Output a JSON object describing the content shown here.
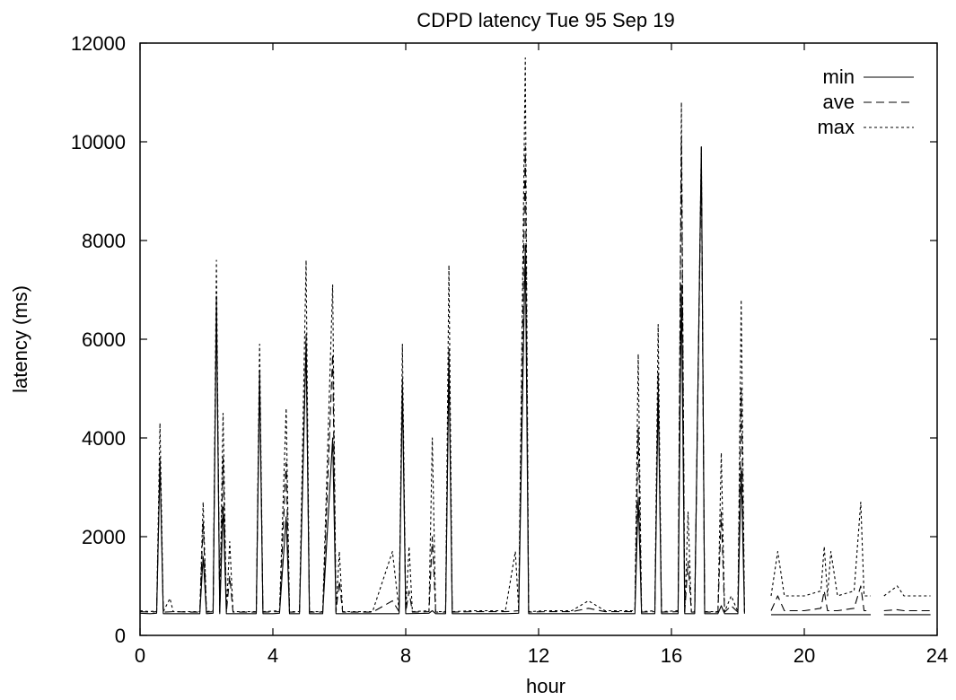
{
  "chart_data": {
    "type": "line",
    "title": "CDPD latency Tue 95 Sep 19",
    "xlabel": "hour",
    "ylabel": "latency (ms)",
    "xlim": [
      0,
      24
    ],
    "ylim": [
      0,
      12000
    ],
    "xticks": [
      0,
      4,
      8,
      12,
      16,
      20,
      24
    ],
    "yticks": [
      0,
      2000,
      4000,
      6000,
      8000,
      10000,
      12000
    ],
    "xtick_labels": [
      "0",
      "4",
      "8",
      "12",
      "16",
      "20",
      "24"
    ],
    "ytick_labels": [
      "0",
      "2000",
      "4000",
      "6000",
      "8000",
      "10000",
      "12000"
    ],
    "grid": false,
    "legend_position": "top-right",
    "series": [
      {
        "name": "min",
        "dash": "solid",
        "segments": [
          [
            [
              0,
              450
            ],
            [
              0.3,
              440
            ],
            [
              0.5,
              450
            ],
            [
              0.6,
              3500
            ],
            [
              0.7,
              440
            ],
            [
              1.0,
              440
            ],
            [
              1.5,
              440
            ],
            [
              1.8,
              440
            ],
            [
              1.9,
              1600
            ],
            [
              2.0,
              440
            ],
            [
              2.2,
              450
            ],
            [
              2.3,
              6700
            ],
            [
              2.4,
              440
            ],
            [
              2.5,
              2600
            ],
            [
              2.6,
              440
            ],
            [
              3.0,
              440
            ],
            [
              3.5,
              440
            ],
            [
              3.6,
              5200
            ],
            [
              3.7,
              440
            ],
            [
              4.0,
              440
            ],
            [
              4.2,
              450
            ],
            [
              4.4,
              2400
            ],
            [
              4.5,
              440
            ],
            [
              4.8,
              440
            ],
            [
              5.0,
              5900
            ],
            [
              5.1,
              440
            ],
            [
              5.5,
              440
            ],
            [
              5.8,
              4000
            ],
            [
              5.9,
              440
            ],
            [
              6.2,
              440
            ],
            [
              7.0,
              440
            ],
            [
              7.8,
              440
            ],
            [
              7.9,
              5000
            ],
            [
              8.0,
              440
            ],
            [
              8.7,
              450
            ],
            [
              8.8,
              500
            ],
            [
              8.9,
              440
            ],
            [
              9.2,
              440
            ],
            [
              9.3,
              5500
            ],
            [
              9.4,
              440
            ],
            [
              10.0,
              440
            ],
            [
              11.0,
              440
            ],
            [
              11.4,
              450
            ],
            [
              11.6,
              7900
            ],
            [
              11.7,
              440
            ],
            [
              12.2,
              440
            ],
            [
              13.0,
              440
            ],
            [
              14.0,
              440
            ],
            [
              14.9,
              440
            ],
            [
              15.0,
              2800
            ],
            [
              15.1,
              440
            ],
            [
              15.5,
              440
            ],
            [
              15.6,
              4900
            ],
            [
              15.7,
              440
            ],
            [
              16.2,
              440
            ],
            [
              16.3,
              7100
            ],
            [
              16.4,
              440
            ],
            [
              16.7,
              440
            ],
            [
              16.9,
              9900
            ],
            [
              17.0,
              440
            ],
            [
              17.4,
              440
            ],
            [
              17.5,
              600
            ],
            [
              17.6,
              440
            ],
            [
              18.0,
              440
            ],
            [
              18.1,
              3400
            ],
            [
              18.2,
              440
            ]
          ],
          [
            [
              19.0,
              420
            ],
            [
              20.0,
              420
            ],
            [
              21.0,
              420
            ],
            [
              22.0,
              420
            ]
          ],
          [
            [
              22.4,
              420
            ],
            [
              23.0,
              420
            ],
            [
              23.8,
              420
            ]
          ]
        ]
      },
      {
        "name": "ave",
        "dash": "dashed",
        "segments": [
          [
            [
              0,
              480
            ],
            [
              0.3,
              470
            ],
            [
              0.5,
              480
            ],
            [
              0.6,
              3600
            ],
            [
              0.7,
              470
            ],
            [
              1.0,
              480
            ],
            [
              1.5,
              470
            ],
            [
              1.8,
              470
            ],
            [
              1.9,
              2300
            ],
            [
              2.0,
              470
            ],
            [
              2.2,
              480
            ],
            [
              2.3,
              6900
            ],
            [
              2.4,
              470
            ],
            [
              2.5,
              3600
            ],
            [
              2.6,
              470
            ],
            [
              2.7,
              1200
            ],
            [
              2.8,
              470
            ],
            [
              3.5,
              470
            ],
            [
              3.6,
              5400
            ],
            [
              3.7,
              470
            ],
            [
              4.2,
              480
            ],
            [
              4.4,
              3500
            ],
            [
              4.5,
              470
            ],
            [
              4.8,
              470
            ],
            [
              5.0,
              6100
            ],
            [
              5.1,
              470
            ],
            [
              5.5,
              470
            ],
            [
              5.8,
              5700
            ],
            [
              5.9,
              470
            ],
            [
              6.0,
              1100
            ],
            [
              6.1,
              470
            ],
            [
              7.0,
              470
            ],
            [
              7.6,
              700
            ],
            [
              7.8,
              480
            ],
            [
              7.9,
              5200
            ],
            [
              8.0,
              470
            ],
            [
              8.1,
              900
            ],
            [
              8.2,
              470
            ],
            [
              8.7,
              480
            ],
            [
              8.8,
              2000
            ],
            [
              8.9,
              470
            ],
            [
              9.2,
              470
            ],
            [
              9.3,
              5800
            ],
            [
              9.4,
              470
            ],
            [
              10.0,
              480
            ],
            [
              11.0,
              480
            ],
            [
              11.4,
              500
            ],
            [
              11.6,
              9900
            ],
            [
              11.7,
              470
            ],
            [
              12.2,
              480
            ],
            [
              13.0,
              480
            ],
            [
              13.5,
              550
            ],
            [
              14.0,
              480
            ],
            [
              14.9,
              480
            ],
            [
              15.0,
              4200
            ],
            [
              15.1,
              470
            ],
            [
              15.5,
              480
            ],
            [
              15.6,
              5300
            ],
            [
              15.7,
              470
            ],
            [
              16.2,
              480
            ],
            [
              16.3,
              10100
            ],
            [
              16.4,
              470
            ],
            [
              16.5,
              1500
            ],
            [
              16.6,
              470
            ],
            [
              16.7,
              470
            ],
            [
              16.9,
              9600
            ],
            [
              17.0,
              470
            ],
            [
              17.4,
              470
            ],
            [
              17.5,
              2500
            ],
            [
              17.6,
              470
            ],
            [
              17.8,
              600
            ],
            [
              18.0,
              470
            ],
            [
              18.1,
              5000
            ],
            [
              18.2,
              470
            ]
          ],
          [
            [
              19.0,
              500
            ],
            [
              19.2,
              800
            ],
            [
              19.4,
              500
            ],
            [
              20.0,
              500
            ],
            [
              20.5,
              550
            ],
            [
              20.6,
              900
            ],
            [
              20.7,
              500
            ],
            [
              20.8,
              500
            ],
            [
              21.0,
              500
            ],
            [
              21.5,
              550
            ],
            [
              21.7,
              1000
            ],
            [
              21.8,
              500
            ],
            [
              22.0,
              500
            ]
          ],
          [
            [
              22.4,
              500
            ],
            [
              22.8,
              520
            ],
            [
              23.0,
              500
            ],
            [
              23.8,
              500
            ]
          ]
        ]
      },
      {
        "name": "max",
        "dash": "dotted",
        "segments": [
          [
            [
              0,
              500
            ],
            [
              0.3,
              480
            ],
            [
              0.5,
              500
            ],
            [
              0.6,
              4300
            ],
            [
              0.7,
              480
            ],
            [
              0.9,
              750
            ],
            [
              1.0,
              480
            ],
            [
              1.5,
              480
            ],
            [
              1.8,
              480
            ],
            [
              1.9,
              2700
            ],
            [
              2.0,
              480
            ],
            [
              2.2,
              500
            ],
            [
              2.3,
              7600
            ],
            [
              2.4,
              480
            ],
            [
              2.5,
              4500
            ],
            [
              2.6,
              480
            ],
            [
              2.7,
              1900
            ],
            [
              2.8,
              480
            ],
            [
              3.5,
              480
            ],
            [
              3.6,
              5900
            ],
            [
              3.7,
              480
            ],
            [
              4.2,
              500
            ],
            [
              4.4,
              4600
            ],
            [
              4.5,
              480
            ],
            [
              4.8,
              480
            ],
            [
              5.0,
              7600
            ],
            [
              5.1,
              480
            ],
            [
              5.5,
              480
            ],
            [
              5.8,
              7100
            ],
            [
              5.9,
              480
            ],
            [
              6.0,
              1700
            ],
            [
              6.1,
              480
            ],
            [
              7.0,
              480
            ],
            [
              7.6,
              1700
            ],
            [
              7.8,
              500
            ],
            [
              7.9,
              5900
            ],
            [
              8.0,
              480
            ],
            [
              8.1,
              1800
            ],
            [
              8.2,
              480
            ],
            [
              8.7,
              500
            ],
            [
              8.8,
              4000
            ],
            [
              8.9,
              480
            ],
            [
              9.2,
              480
            ],
            [
              9.3,
              7500
            ],
            [
              9.4,
              480
            ],
            [
              10.0,
              500
            ],
            [
              11.0,
              500
            ],
            [
              11.3,
              1700
            ],
            [
              11.4,
              520
            ],
            [
              11.6,
              11700
            ],
            [
              11.7,
              480
            ],
            [
              12.2,
              500
            ],
            [
              13.0,
              500
            ],
            [
              13.5,
              700
            ],
            [
              14.0,
              500
            ],
            [
              14.9,
              500
            ],
            [
              15.0,
              5700
            ],
            [
              15.1,
              480
            ],
            [
              15.5,
              500
            ],
            [
              15.6,
              6300
            ],
            [
              15.7,
              480
            ],
            [
              16.2,
              500
            ],
            [
              16.3,
              10800
            ],
            [
              16.4,
              480
            ],
            [
              16.5,
              2500
            ],
            [
              16.6,
              480
            ],
            [
              16.7,
              480
            ],
            [
              16.9,
              9900
            ],
            [
              17.0,
              480
            ],
            [
              17.4,
              480
            ],
            [
              17.5,
              3700
            ],
            [
              17.6,
              480
            ],
            [
              17.8,
              800
            ],
            [
              18.0,
              480
            ],
            [
              18.1,
              6800
            ],
            [
              18.2,
              480
            ]
          ],
          [
            [
              19.0,
              800
            ],
            [
              19.2,
              1700
            ],
            [
              19.4,
              800
            ],
            [
              20.0,
              800
            ],
            [
              20.5,
              900
            ],
            [
              20.6,
              1800
            ],
            [
              20.7,
              800
            ],
            [
              20.8,
              1700
            ],
            [
              21.0,
              800
            ],
            [
              21.5,
              900
            ],
            [
              21.7,
              2700
            ],
            [
              21.8,
              800
            ],
            [
              22.0,
              800
            ]
          ],
          [
            [
              22.4,
              800
            ],
            [
              22.8,
              1000
            ],
            [
              23.0,
              800
            ],
            [
              23.8,
              800
            ]
          ]
        ]
      }
    ]
  }
}
